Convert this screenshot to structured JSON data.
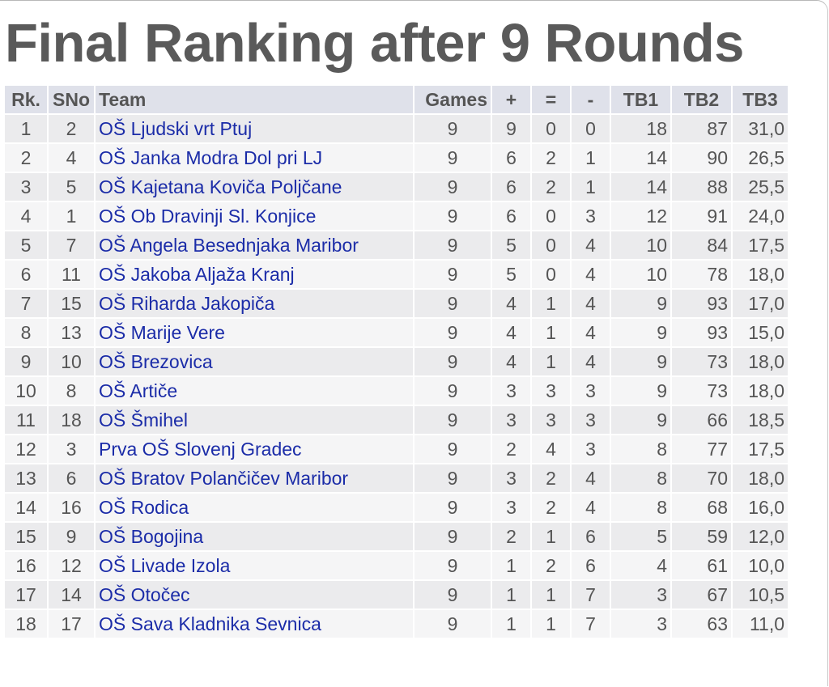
{
  "title": "Final Ranking after 9 Rounds",
  "table": {
    "headers": {
      "rk": "Rk.",
      "sno": "SNo",
      "team": "Team",
      "games": "Games",
      "plus": "+",
      "equal": "=",
      "minus": "-",
      "tb1": "TB1",
      "tb2": "TB2",
      "tb3": "TB3"
    },
    "rows": [
      {
        "rk": "1",
        "sno": "2",
        "team": "OŠ Ljudski vrt Ptuj",
        "games": "9",
        "plus": "9",
        "equal": "0",
        "minus": "0",
        "tb1": "18",
        "tb2": "87",
        "tb3": "31,0"
      },
      {
        "rk": "2",
        "sno": "4",
        "team": "OŠ Janka Modra Dol pri LJ",
        "games": "9",
        "plus": "6",
        "equal": "2",
        "minus": "1",
        "tb1": "14",
        "tb2": "90",
        "tb3": "26,5"
      },
      {
        "rk": "3",
        "sno": "5",
        "team": "OŠ Kajetana Koviča Poljčane",
        "games": "9",
        "plus": "6",
        "equal": "2",
        "minus": "1",
        "tb1": "14",
        "tb2": "88",
        "tb3": "25,5"
      },
      {
        "rk": "4",
        "sno": "1",
        "team": "OŠ Ob Dravinji Sl. Konjice",
        "games": "9",
        "plus": "6",
        "equal": "0",
        "minus": "3",
        "tb1": "12",
        "tb2": "91",
        "tb3": "24,0"
      },
      {
        "rk": "5",
        "sno": "7",
        "team": "OŠ Angela Besednjaka Maribor",
        "games": "9",
        "plus": "5",
        "equal": "0",
        "minus": "4",
        "tb1": "10",
        "tb2": "84",
        "tb3": "17,5"
      },
      {
        "rk": "6",
        "sno": "11",
        "team": "OŠ Jakoba Aljaža Kranj",
        "games": "9",
        "plus": "5",
        "equal": "0",
        "minus": "4",
        "tb1": "10",
        "tb2": "78",
        "tb3": "18,0"
      },
      {
        "rk": "7",
        "sno": "15",
        "team": "OŠ Riharda Jakopiča",
        "games": "9",
        "plus": "4",
        "equal": "1",
        "minus": "4",
        "tb1": "9",
        "tb2": "93",
        "tb3": "17,0"
      },
      {
        "rk": "8",
        "sno": "13",
        "team": "OŠ Marije Vere",
        "games": "9",
        "plus": "4",
        "equal": "1",
        "minus": "4",
        "tb1": "9",
        "tb2": "93",
        "tb3": "15,0"
      },
      {
        "rk": "9",
        "sno": "10",
        "team": "OŠ Brezovica",
        "games": "9",
        "plus": "4",
        "equal": "1",
        "minus": "4",
        "tb1": "9",
        "tb2": "73",
        "tb3": "18,0"
      },
      {
        "rk": "10",
        "sno": "8",
        "team": "OŠ Artiče",
        "games": "9",
        "plus": "3",
        "equal": "3",
        "minus": "3",
        "tb1": "9",
        "tb2": "73",
        "tb3": "18,0"
      },
      {
        "rk": "11",
        "sno": "18",
        "team": "OŠ Šmihel",
        "games": "9",
        "plus": "3",
        "equal": "3",
        "minus": "3",
        "tb1": "9",
        "tb2": "66",
        "tb3": "18,5"
      },
      {
        "rk": "12",
        "sno": "3",
        "team": "Prva OŠ Slovenj Gradec",
        "games": "9",
        "plus": "2",
        "equal": "4",
        "minus": "3",
        "tb1": "8",
        "tb2": "77",
        "tb3": "17,5"
      },
      {
        "rk": "13",
        "sno": "6",
        "team": "OŠ Bratov Polančičev Maribor",
        "games": "9",
        "plus": "3",
        "equal": "2",
        "minus": "4",
        "tb1": "8",
        "tb2": "70",
        "tb3": "18,0"
      },
      {
        "rk": "14",
        "sno": "16",
        "team": "OŠ Rodica",
        "games": "9",
        "plus": "3",
        "equal": "2",
        "minus": "4",
        "tb1": "8",
        "tb2": "68",
        "tb3": "16,0"
      },
      {
        "rk": "15",
        "sno": "9",
        "team": "OŠ Bogojina",
        "games": "9",
        "plus": "2",
        "equal": "1",
        "minus": "6",
        "tb1": "5",
        "tb2": "59",
        "tb3": "12,0"
      },
      {
        "rk": "16",
        "sno": "12",
        "team": "OŠ Livade Izola",
        "games": "9",
        "plus": "1",
        "equal": "2",
        "minus": "6",
        "tb1": "4",
        "tb2": "61",
        "tb3": "10,0"
      },
      {
        "rk": "17",
        "sno": "14",
        "team": "OŠ Otočec",
        "games": "9",
        "plus": "1",
        "equal": "1",
        "minus": "7",
        "tb1": "3",
        "tb2": "67",
        "tb3": "10,5"
      },
      {
        "rk": "18",
        "sno": "17",
        "team": "OŠ Sava Kladnika Sevnica",
        "games": "9",
        "plus": "1",
        "equal": "1",
        "minus": "7",
        "tb1": "3",
        "tb2": "63",
        "tb3": "11,0"
      }
    ]
  },
  "colors": {
    "title": "#5a5a5a",
    "header_bg": "#dfe1ea",
    "row_odd_bg": "#ebebed",
    "row_even_bg": "#f5f5f6",
    "team_link": "#1b2ca8",
    "text": "#555555"
  }
}
